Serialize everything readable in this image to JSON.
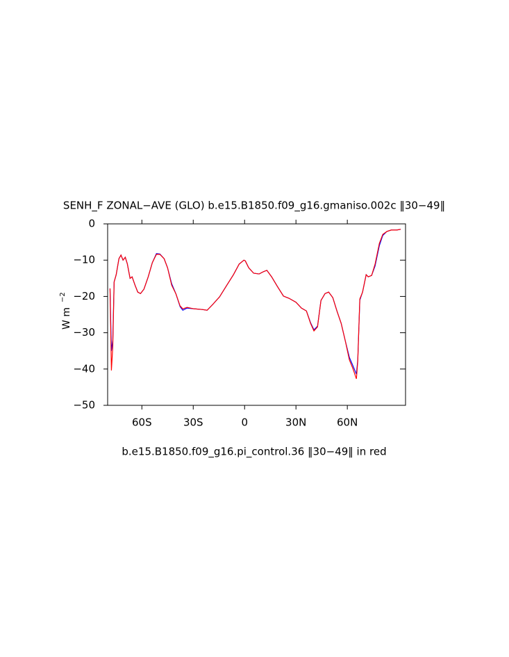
{
  "chart_data": {
    "type": "line",
    "title": "SENH_F ZONAL−AVE (GLO) b.e15.B1850.f09_g16.gmaniso.002c ‖30−49‖",
    "subtitle": "b.e15.B1850.f09_g16.pi_control.36 ‖30−49‖ in red",
    "ylabel": "W m",
    "ylabel_exponent": "−2",
    "x": [
      -78.6,
      -77.8,
      -77,
      -76.2,
      -75,
      -73.4,
      -72.2,
      -71,
      -69.7,
      -68.5,
      -66.9,
      -65.7,
      -64,
      -62.4,
      -60.8,
      -58.8,
      -56.3,
      -53.9,
      -51.5,
      -49.5,
      -47,
      -45,
      -42.6,
      -40.1,
      -37.7,
      -36.1,
      -33.6,
      -29.6,
      -24.7,
      -21.9,
      -18.6,
      -14.6,
      -10.5,
      -6.5,
      -3.2,
      -0.4,
      0.4,
      2.4,
      5.3,
      8.5,
      10.9,
      13,
      15.8,
      19.1,
      22.7,
      25.9,
      30,
      33.2,
      36.1,
      38.5,
      40.5,
      42.6,
      44.6,
      47,
      49.1,
      51.5,
      54,
      56.4,
      58.8,
      61.2,
      63.2,
      65.3,
      66.1,
      67.3,
      68.9,
      71,
      72.2,
      74.2,
      76.2,
      78.7,
      80.7,
      83.1,
      85.6,
      88.8,
      91.2
    ],
    "series": [
      {
        "color": "#0000ff",
        "values": [
          -17.8,
          -35,
          -32,
          -16,
          -14,
          -9.6,
          -8.6,
          -10,
          -9.2,
          -11,
          -15,
          -14.6,
          -16.9,
          -18.8,
          -19.2,
          -18,
          -14.6,
          -10.7,
          -8.2,
          -8.3,
          -9.6,
          -12.1,
          -16.5,
          -19.3,
          -22.8,
          -23.8,
          -23.2,
          -23.4,
          -23.6,
          -23.8,
          -22.2,
          -20.1,
          -17,
          -14,
          -11.1,
          -10,
          -10.2,
          -12.1,
          -13.6,
          -13.8,
          -13.2,
          -12.8,
          -14.6,
          -17.2,
          -19.9,
          -20.5,
          -21.6,
          -23.2,
          -24,
          -27.2,
          -29.2,
          -28.2,
          -21.1,
          -19.2,
          -18.8,
          -20.3,
          -24.1,
          -27.4,
          -32.2,
          -36.8,
          -39,
          -41.4,
          -37.5,
          -21,
          -18.8,
          -14,
          -14.6,
          -14.2,
          -11.6,
          -6,
          -3.2,
          -2.1,
          -1.7,
          -1.7,
          -1.5
        ]
      },
      {
        "color": "#ff0000",
        "values": [
          -17.8,
          -40.4,
          -34,
          -16,
          -14,
          -9.6,
          -8.6,
          -10,
          -9.2,
          -11,
          -15,
          -14.6,
          -16.9,
          -18.8,
          -19.2,
          -18,
          -14.6,
          -10.7,
          -8.4,
          -8.4,
          -9.6,
          -12.1,
          -16.9,
          -19.3,
          -22.6,
          -23.4,
          -23,
          -23.4,
          -23.6,
          -23.8,
          -22.2,
          -20.1,
          -17,
          -14,
          -11.1,
          -10,
          -10.2,
          -12.1,
          -13.6,
          -13.8,
          -13.2,
          -12.8,
          -14.6,
          -17.2,
          -19.9,
          -20.5,
          -21.6,
          -23.2,
          -24,
          -27.4,
          -29.5,
          -28.4,
          -21.1,
          -19.2,
          -18.8,
          -20.3,
          -24.1,
          -27.4,
          -32.2,
          -37.5,
          -39.8,
          -42.7,
          -37.9,
          -20.7,
          -18.8,
          -14,
          -14.6,
          -14.2,
          -11.1,
          -5.4,
          -2.9,
          -2.1,
          -1.7,
          -1.7,
          -1.5
        ]
      }
    ],
    "xlim": [
      -80,
      94
    ],
    "xticks": [
      {
        "value": -60,
        "label": "60S"
      },
      {
        "value": -30,
        "label": "30S"
      },
      0,
      {
        "value": 30,
        "label": "30N"
      },
      {
        "value": 60,
        "label": "60N"
      }
    ],
    "ylim": [
      -50,
      0
    ],
    "yticks": [
      {
        "value": -50,
        "label": "−50"
      },
      {
        "value": -40,
        "label": "−40"
      },
      {
        "value": -30,
        "label": "−30"
      },
      {
        "value": -20,
        "label": "−20"
      },
      {
        "value": -10,
        "label": "−10"
      },
      0
    ]
  }
}
